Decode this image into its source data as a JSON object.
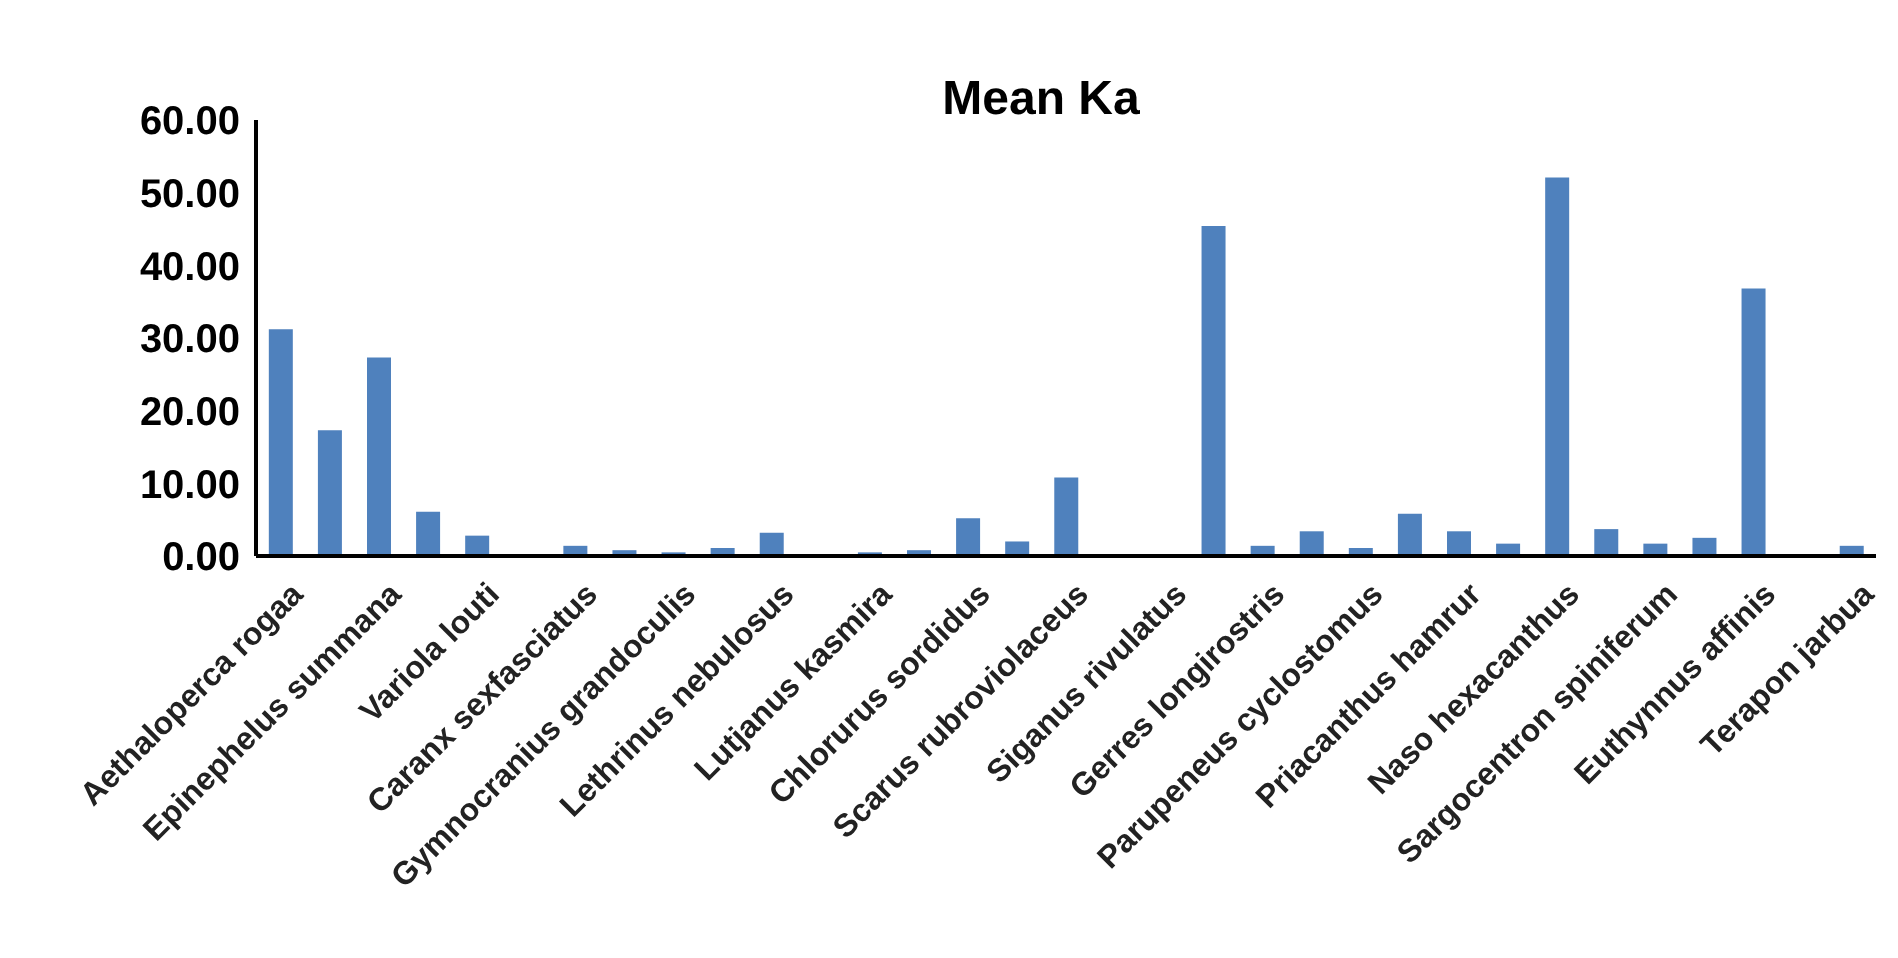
{
  "chart_data": {
    "type": "bar",
    "title": "Mean Ka",
    "categories": [
      "Aethaloperca rogaa",
      null,
      "Epinephelus summana",
      null,
      "Variola louti",
      null,
      "Caranx sexfasciatus",
      null,
      "Gymnocranius grandoculis",
      null,
      "Lethrinus nebulosus",
      null,
      "Lutjanus kasmira",
      null,
      "Chlorurus sordidus",
      null,
      "Scarus rubroviolaceus",
      null,
      "Siganus rivulatus",
      null,
      "Gerres longirostris",
      null,
      "Parupeneus cyclostomus",
      null,
      "Priacanthus hamrur",
      null,
      "Naso hexacanthus",
      null,
      "Sargocentron spiniferum",
      null,
      "Euthynnus affinis",
      null,
      "Terapon jarbua"
    ],
    "values": [
      31.2,
      17.3,
      27.3,
      6.1,
      2.8,
      0,
      1.4,
      0.8,
      0.5,
      1.1,
      3.2,
      0,
      0.5,
      0.8,
      5.2,
      2.0,
      10.8,
      0,
      0,
      45.4,
      1.4,
      3.4,
      1.1,
      5.8,
      3.4,
      1.7,
      52.1,
      3.7,
      1.7,
      2.5,
      36.8,
      0,
      1.4
    ],
    "color": "#4f81bd",
    "ylim": [
      0,
      60
    ],
    "yticks": [
      {
        "value": 0,
        "label": "0.00"
      },
      {
        "value": 10,
        "label": "10.00"
      },
      {
        "value": 20,
        "label": "20.00"
      },
      {
        "value": 30,
        "label": "30.00"
      },
      {
        "value": 40,
        "label": "40.00"
      },
      {
        "value": 50,
        "label": "50.00"
      },
      {
        "value": 60,
        "label": "60.00"
      }
    ],
    "grid": false,
    "legend": false
  }
}
